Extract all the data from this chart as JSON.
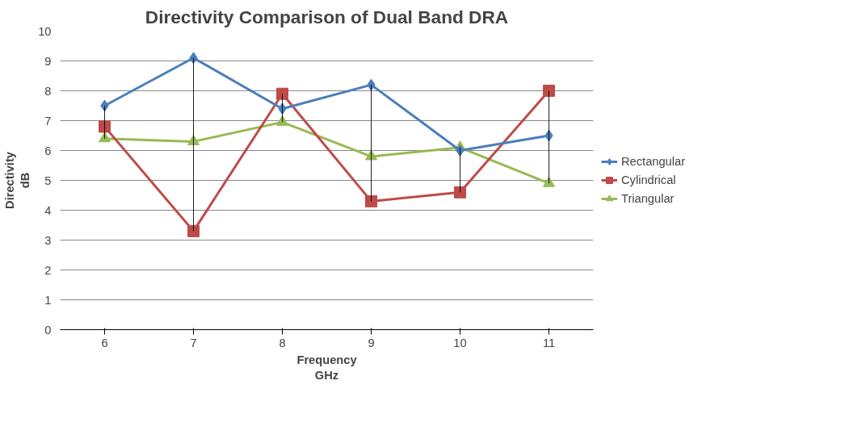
{
  "chart_data": {
    "type": "line",
    "title": "Directivity Comparison of Dual Band DRA",
    "xlabel": "Frequency\nGHz",
    "ylabel": "Directivity\ndB",
    "categories": [
      "6",
      "7",
      "8",
      "9",
      "10",
      "11"
    ],
    "series": [
      {
        "type": "bar",
        "color": "#000000",
        "base": [
          6.4,
          3.3,
          6.95,
          4.3,
          4.6,
          4.9
        ],
        "values": [
          1.1,
          5.8,
          0.95,
          3.9,
          1.5,
          3.1
        ]
      },
      {
        "name": "Rectangular",
        "color": "#4a7ebb",
        "marker": "diamond",
        "values": [
          7.5,
          9.1,
          7.4,
          8.2,
          6.0,
          6.5
        ]
      },
      {
        "name": "Cylindrical",
        "color": "#be4b48",
        "marker": "square",
        "values": [
          6.8,
          3.3,
          7.9,
          4.3,
          4.6,
          8.0
        ]
      },
      {
        "name": "Triangular",
        "color": "#98b954",
        "marker": "triangle",
        "values": [
          6.4,
          6.3,
          6.95,
          5.8,
          6.1,
          4.9
        ]
      }
    ],
    "ylim": [
      0,
      10
    ],
    "yticks": [
      0,
      1,
      2,
      3,
      4,
      5,
      6,
      7,
      8,
      9,
      10
    ],
    "grid": "y",
    "legend": "right"
  }
}
